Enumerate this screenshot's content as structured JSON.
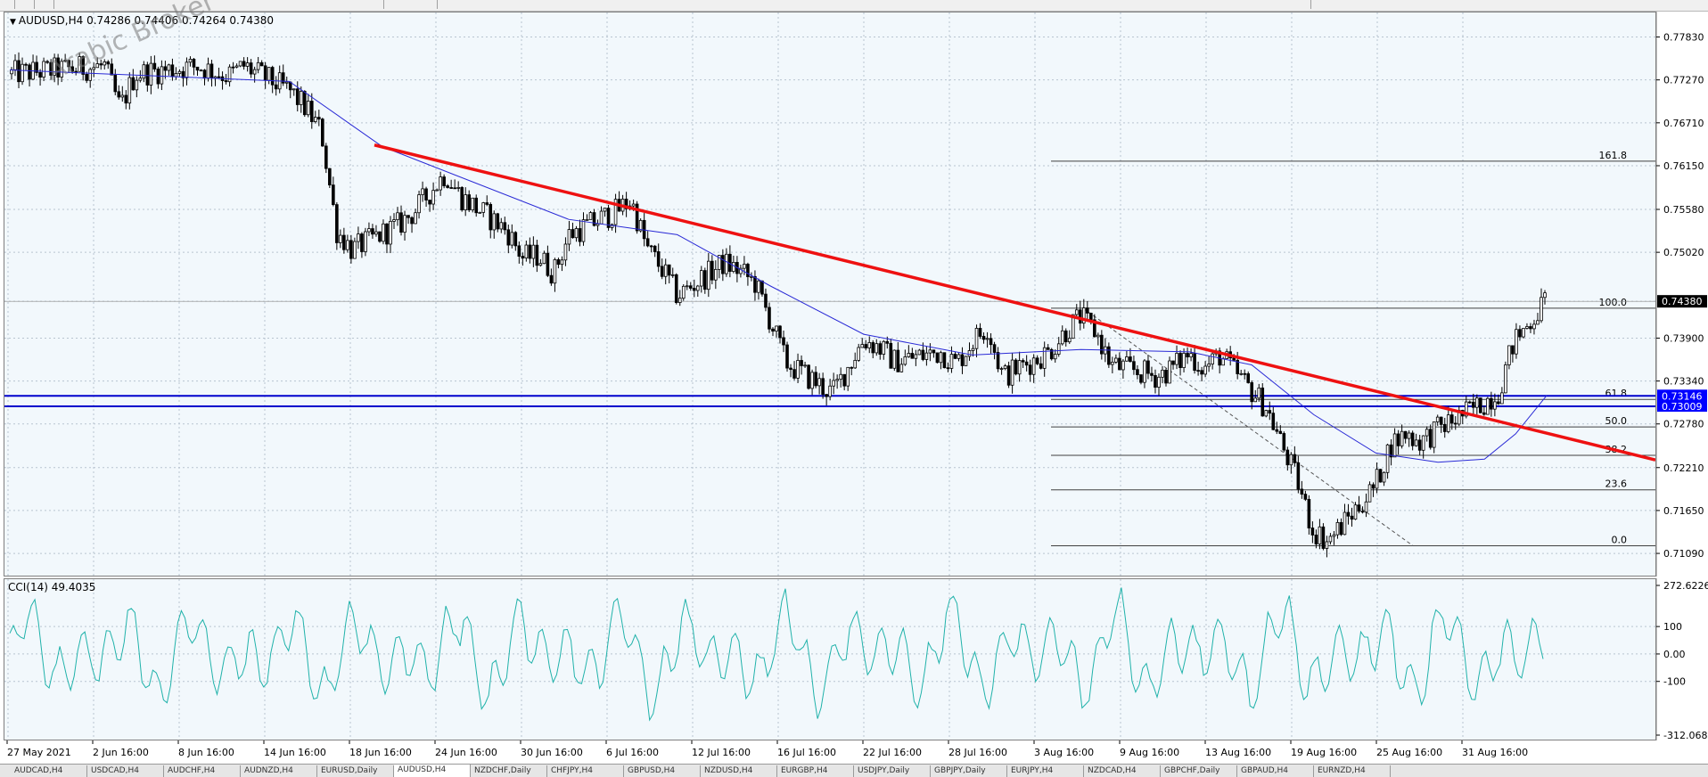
{
  "header": {
    "symbol_label": "AUDUSD,H4",
    "ohlc_label": "0.74286 0.74406 0.74264 0.74380",
    "watermark": "Arabic Broker"
  },
  "colors": {
    "background": "#f2f8fc",
    "candle": "#000000",
    "ma_line": "#2a2ad6",
    "trendline": "#ee1111",
    "horizontal_levels": "#0000cc",
    "price_tag": "#0000ff",
    "cci_line": "#20b2aa",
    "grid": "#b8c4d0",
    "fib_line": "#404040"
  },
  "chart_data": [
    {
      "type": "candlestick",
      "symbol": "AUDUSD",
      "timeframe": "H4",
      "ylim": [
        0.708,
        0.7815
      ],
      "grid": true,
      "y_ticks": [
        "0.77830",
        "0.77270",
        "0.76710",
        "0.76150",
        "0.75580",
        "0.75020",
        "0.74380",
        "0.73900",
        "0.73340",
        "0.72780",
        "0.72210",
        "0.71650",
        "0.71090"
      ],
      "x_ticks": [
        "27 May 2021",
        "2 Jun 16:00",
        "8 Jun 16:00",
        "14 Jun 16:00",
        "18 Jun 16:00",
        "24 Jun 16:00",
        "30 Jun 16:00",
        "6 Jul 16:00",
        "12 Jul 16:00",
        "16 Jul 16:00",
        "22 Jul 16:00",
        "28 Jul 16:00",
        "3 Aug 16:00",
        "9 Aug 16:00",
        "13 Aug 16:00",
        "19 Aug 16:00",
        "25 Aug 16:00",
        "31 Aug 16:00"
      ],
      "current_price": {
        "label": "0.74380",
        "value": 0.7438
      },
      "horizontal_levels": [
        {
          "label": "0.73146",
          "value": 0.73146
        },
        {
          "label": "0.73009",
          "value": 0.73009
        }
      ],
      "fibonacci": {
        "levels": [
          {
            "label": "161.8",
            "value": 0.7621
          },
          {
            "label": "100.0",
            "value": 0.7429
          },
          {
            "label": "61.8",
            "value": 0.731
          },
          {
            "label": "50.0",
            "value": 0.7274
          },
          {
            "label": "38.2",
            "value": 0.7237
          },
          {
            "label": "23.6",
            "value": 0.7192
          },
          {
            "label": "0.0",
            "value": 0.7119
          }
        ]
      },
      "trendline": [
        {
          "x": "18 Jun 16:00",
          "y": 0.7642
        },
        {
          "x": "3 Sep",
          "y": 0.7231
        }
      ],
      "close_path": [
        [
          "27 May 2021",
          0.7735
        ],
        [
          "2 Jun",
          0.7745
        ],
        [
          "3 Jun",
          0.769
        ],
        [
          "4 Jun",
          0.7735
        ],
        [
          "8 Jun",
          0.7745
        ],
        [
          "10 Jun",
          0.7732
        ],
        [
          "11 Jun",
          0.7745
        ],
        [
          "14 Jun",
          0.7712
        ],
        [
          "15 Jun",
          0.769
        ],
        [
          "16 Jun",
          0.766
        ],
        [
          "17 Jun",
          0.753
        ],
        [
          "18 Jun",
          0.7505
        ],
        [
          "21 Jun",
          0.7538
        ],
        [
          "22 Jun",
          0.7555
        ],
        [
          "23 Jun",
          0.758
        ],
        [
          "24 Jun",
          0.7605
        ],
        [
          "25 Jun",
          0.7575
        ],
        [
          "28 Jun",
          0.753
        ],
        [
          "29 Jun",
          0.7495
        ],
        [
          "30 Jun",
          0.7498
        ],
        [
          "1 Jul",
          0.7475
        ],
        [
          "2 Jul",
          0.7525
        ],
        [
          "5 Jul",
          0.7555
        ],
        [
          "6 Jul",
          0.757
        ],
        [
          "7 Jul",
          0.7508
        ],
        [
          "8 Jul",
          0.748
        ],
        [
          "9 Jul",
          0.7445
        ],
        [
          "12 Jul",
          0.7488
        ],
        [
          "13 Jul",
          0.7478
        ],
        [
          "14 Jul",
          0.7462
        ],
        [
          "15 Jul",
          0.7412
        ],
        [
          "16 Jul",
          0.7358
        ],
        [
          "19 Jul",
          0.7318
        ],
        [
          "20 Jul",
          0.7352
        ],
        [
          "21 Jul",
          0.7388
        ],
        [
          "22 Jul",
          0.7378
        ],
        [
          "23 Jul",
          0.736
        ],
        [
          "26 Jul",
          0.7372
        ],
        [
          "27 Jul",
          0.7356
        ],
        [
          "28 Jul",
          0.7385
        ],
        [
          "29 Jul",
          0.7405
        ],
        [
          "30 Jul",
          0.734
        ],
        [
          "2 Aug",
          0.7372
        ],
        [
          "3 Aug",
          0.7398
        ],
        [
          "4 Aug",
          0.7418
        ],
        [
          "5 Aug",
          0.7398
        ],
        [
          "6 Aug",
          0.7355
        ],
        [
          "9 Aug",
          0.734
        ],
        [
          "10 Aug",
          0.7352
        ],
        [
          "11 Aug",
          0.737
        ],
        [
          "12 Aug",
          0.735
        ],
        [
          "13 Aug",
          0.7368
        ],
        [
          "16 Aug",
          0.73
        ],
        [
          "17 Aug",
          0.7252
        ],
        [
          "18 Aug",
          0.7205
        ],
        [
          "19 Aug",
          0.714
        ],
        [
          "20 Aug",
          0.7125
        ],
        [
          "23 Aug",
          0.7195
        ],
        [
          "24 Aug",
          0.725
        ],
        [
          "25 Aug",
          0.7265
        ],
        [
          "26 Aug",
          0.7255
        ],
        [
          "27 Aug",
          0.727
        ],
        [
          "30 Aug",
          0.7305
        ],
        [
          "31 Aug",
          0.732
        ],
        [
          "1 Sep",
          0.7385
        ],
        [
          "2 Sep",
          0.741
        ],
        [
          "3 Sep",
          0.7438
        ]
      ],
      "moving_average": [
        [
          "27 May 2021",
          0.774
        ],
        [
          "14 Jun",
          0.7725
        ],
        [
          "20 Jun",
          0.764
        ],
        [
          "2 Jul",
          0.7545
        ],
        [
          "9 Jul",
          0.7525
        ],
        [
          "15 Jul",
          0.7458
        ],
        [
          "21 Jul",
          0.7395
        ],
        [
          "28 Jul",
          0.7368
        ],
        [
          "4 Aug",
          0.7375
        ],
        [
          "11 Aug",
          0.7372
        ],
        [
          "15 Aug",
          0.7355
        ],
        [
          "19 Aug",
          0.729
        ],
        [
          "23 Aug",
          0.724
        ],
        [
          "27 Aug",
          0.7228
        ],
        [
          "30 Aug",
          0.7232
        ],
        [
          "1 Sep",
          0.7265
        ],
        [
          "3 Sep",
          0.7315
        ]
      ]
    },
    {
      "type": "line",
      "indicator_label": "CCI(14) 49.4035",
      "ylim": [
        -312.0685,
        272.6226
      ],
      "y_ticks": [
        "272.6226",
        "100",
        "0.00",
        "-100",
        "-312.0685"
      ],
      "grid": true
    }
  ],
  "tabs": [
    "AUDCAD,H4",
    "USDCAD,H4",
    "AUDCHF,H4",
    "AUDNZD,H4",
    "EURUSD,Daily",
    "AUDUSD,H4",
    "NZDCHF,Daily",
    "CHFJPY,H4",
    "GBPUSD,H4",
    "NZDUSD,H4",
    "EURGBP,H4",
    "USDJPY,Daily",
    "GBPJPY,Daily",
    "EURJPY,H4",
    "NZDCAD,H4",
    "GBPCHF,Daily",
    "GBPAUD,H4",
    "EURNZD,H4"
  ],
  "active_tab": 5
}
